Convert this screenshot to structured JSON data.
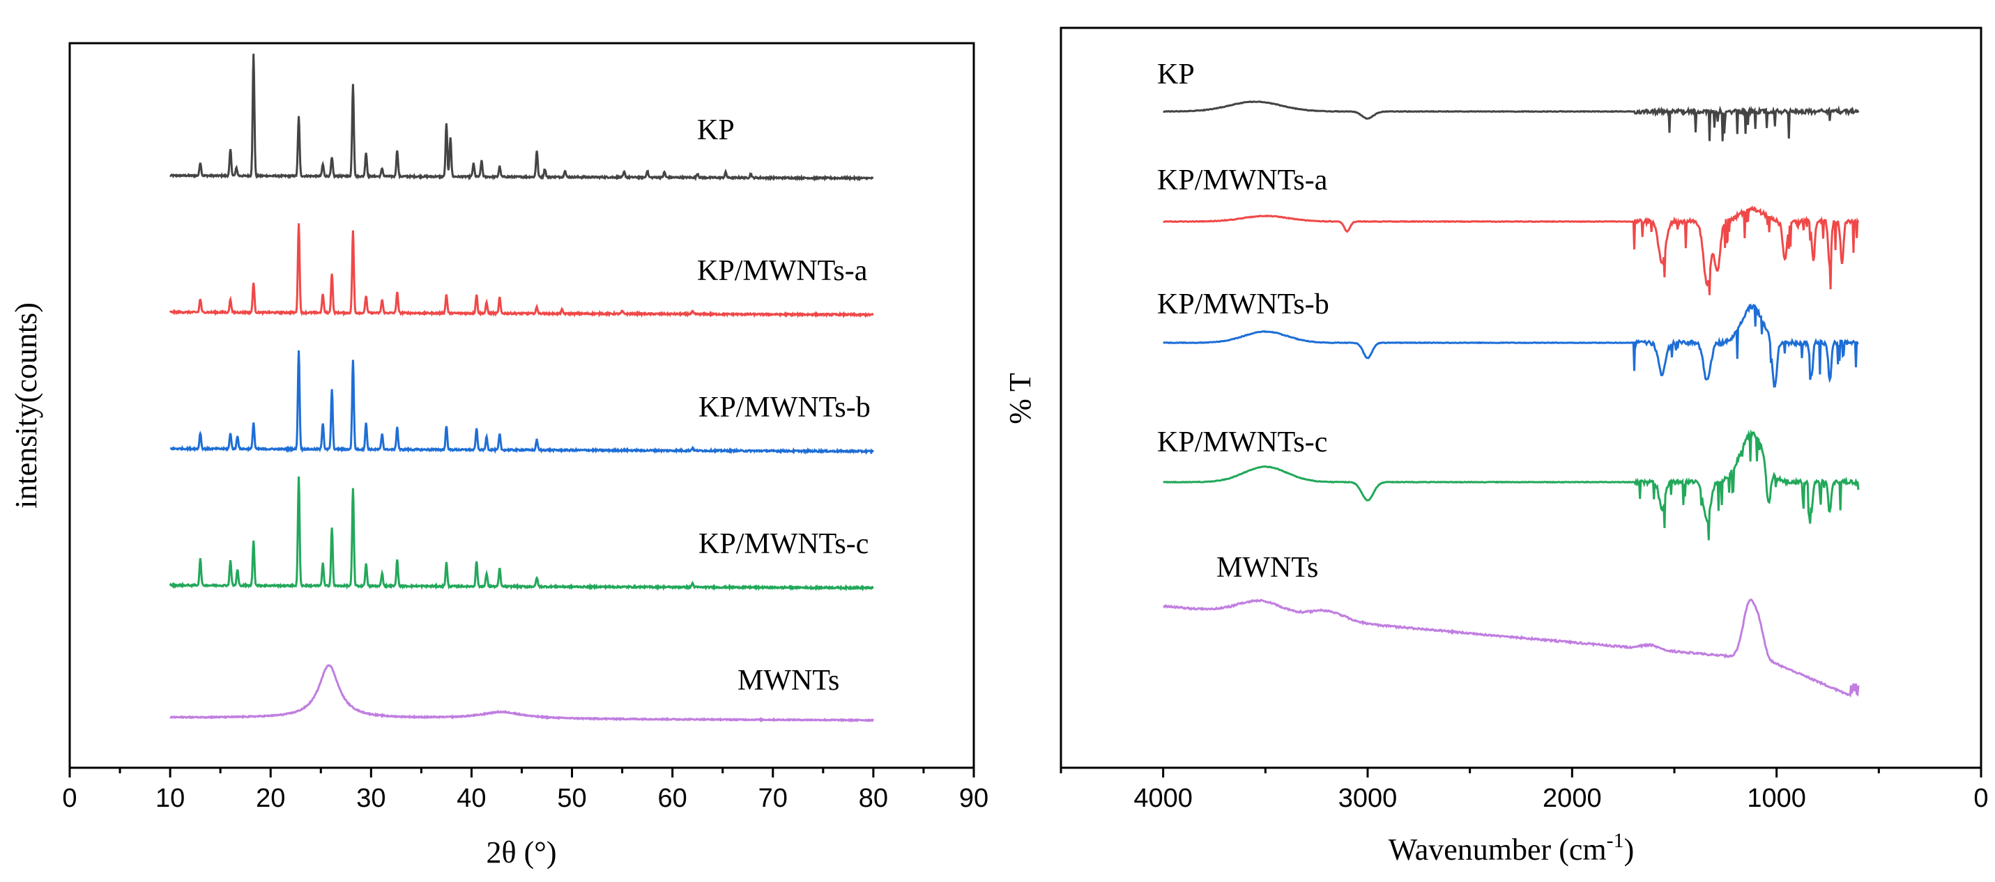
{
  "chart_data": [
    {
      "type": "line",
      "title": "",
      "xlabel": "2θ (°)",
      "ylabel": "intensity(counts)",
      "xlim": [
        0,
        90
      ],
      "xticks": [
        "0",
        "10",
        "20",
        "30",
        "40",
        "50",
        "60",
        "70",
        "80",
        "90"
      ],
      "x_range": [
        10,
        80
      ],
      "series": [
        {
          "name": "KP",
          "color": "#444444",
          "peaks": [
            [
              13,
              0.1
            ],
            [
              16,
              0.2
            ],
            [
              16.6,
              0.06
            ],
            [
              18.3,
              0.92
            ],
            [
              22.8,
              0.45
            ],
            [
              25.2,
              0.09
            ],
            [
              26.1,
              0.14
            ],
            [
              28.2,
              0.7
            ],
            [
              29.5,
              0.18
            ],
            [
              31.1,
              0.06
            ],
            [
              32.6,
              0.2
            ],
            [
              37.5,
              0.4
            ],
            [
              37.9,
              0.3
            ],
            [
              40.2,
              0.1
            ],
            [
              41,
              0.12
            ],
            [
              42.8,
              0.08
            ],
            [
              46.5,
              0.2
            ],
            [
              47.3,
              0.06
            ],
            [
              49.3,
              0.05
            ],
            [
              55.2,
              0.04
            ],
            [
              57.5,
              0.05
            ],
            [
              59.2,
              0.04
            ],
            [
              62.5,
              0.03
            ],
            [
              65.3,
              0.04
            ],
            [
              67.8,
              0.03
            ]
          ]
        },
        {
          "name": "KP/MWNTs-a",
          "color": "#f04848",
          "peaks": [
            [
              13,
              0.1
            ],
            [
              16,
              0.1
            ],
            [
              18.3,
              0.23
            ],
            [
              22.8,
              0.68
            ],
            [
              25.2,
              0.14
            ],
            [
              26.1,
              0.3
            ],
            [
              28.2,
              0.62
            ],
            [
              29.5,
              0.13
            ],
            [
              31.1,
              0.1
            ],
            [
              32.6,
              0.16
            ],
            [
              37.5,
              0.14
            ],
            [
              40.5,
              0.14
            ],
            [
              41.5,
              0.08
            ],
            [
              42.8,
              0.12
            ],
            [
              46.5,
              0.05
            ],
            [
              49,
              0.03
            ],
            [
              55,
              0.02
            ],
            [
              62,
              0.02
            ]
          ]
        },
        {
          "name": "KP/MWNTs-b",
          "color": "#1e6ed6",
          "peaks": [
            [
              13,
              0.12
            ],
            [
              16,
              0.12
            ],
            [
              16.7,
              0.1
            ],
            [
              18.3,
              0.2
            ],
            [
              22.8,
              0.75
            ],
            [
              25.2,
              0.2
            ],
            [
              26.1,
              0.45
            ],
            [
              28.2,
              0.68
            ],
            [
              29.5,
              0.2
            ],
            [
              31.1,
              0.12
            ],
            [
              32.6,
              0.17
            ],
            [
              37.5,
              0.18
            ],
            [
              40.5,
              0.16
            ],
            [
              41.5,
              0.1
            ],
            [
              42.8,
              0.12
            ],
            [
              46.5,
              0.08
            ],
            [
              62,
              0.02
            ]
          ]
        },
        {
          "name": "KP/MWNTs-c",
          "color": "#22a85a",
          "peaks": [
            [
              13,
              0.2
            ],
            [
              16,
              0.19
            ],
            [
              16.7,
              0.12
            ],
            [
              18.3,
              0.34
            ],
            [
              22.8,
              0.82
            ],
            [
              25.2,
              0.17
            ],
            [
              26.1,
              0.44
            ],
            [
              28.2,
              0.74
            ],
            [
              29.5,
              0.17
            ],
            [
              31.1,
              0.1
            ],
            [
              32.6,
              0.2
            ],
            [
              37.5,
              0.18
            ],
            [
              40.5,
              0.19
            ],
            [
              41.5,
              0.1
            ],
            [
              42.8,
              0.14
            ],
            [
              46.5,
              0.07
            ],
            [
              62,
              0.03
            ]
          ]
        },
        {
          "name": "MWNTs",
          "color": "#c07ee0",
          "peaks": [
            [
              25.8,
              0.4
            ],
            [
              43,
              0.05
            ]
          ]
        }
      ]
    },
    {
      "type": "line",
      "title": "",
      "xlabel": "Wavenumber (cm-1)",
      "xlabel_base": "Wavenumber (cm",
      "xlabel_sup": "-1",
      "xlabel_end": ")",
      "ylabel": "% T",
      "xlim": [
        4500,
        0
      ],
      "xticks": [
        "4000",
        "3000",
        "2000",
        "1000",
        "0"
      ],
      "x_range": [
        4000,
        600
      ],
      "series": [
        {
          "name": "KP",
          "color": "#444444"
        },
        {
          "name": "KP/MWNTs-a",
          "color": "#f04848"
        },
        {
          "name": "KP/MWNTs-b",
          "color": "#1e6ed6"
        },
        {
          "name": "KP/MWNTs-c",
          "color": "#22a85a"
        },
        {
          "name": "MWNTs",
          "color": "#c07ee0"
        }
      ]
    }
  ]
}
